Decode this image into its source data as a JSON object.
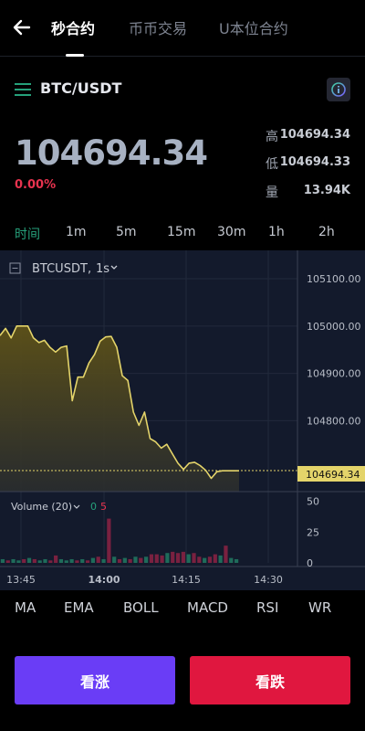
{
  "header": {
    "tabs": [
      {
        "label": "秒合约",
        "active": true
      },
      {
        "label": "币币交易",
        "active": false
      },
      {
        "label": "U本位合约",
        "active": false
      }
    ]
  },
  "pair": {
    "title": "BTC/USDT",
    "info_icon": "info-icon"
  },
  "ticker": {
    "price": "104694.34",
    "change": "0.00%",
    "high_label": "高",
    "high": "104694.34",
    "low_label": "低",
    "low": "104694.33",
    "volume_label": "量",
    "volume": "13.94K"
  },
  "intervals": [
    {
      "label": "时间",
      "active": true
    },
    {
      "label": "1m",
      "active": false
    },
    {
      "label": "5m",
      "active": false
    },
    {
      "label": "15m",
      "active": false
    },
    {
      "label": "30m",
      "active": false
    },
    {
      "label": "1h",
      "active": false
    },
    {
      "label": "2h",
      "active": false
    }
  ],
  "chart_data": {
    "type": "area",
    "symbol": "BTCUSDT",
    "interval": "1s",
    "y_ticks": [
      "105100.00",
      "105000.00",
      "104900.00",
      "104800.00"
    ],
    "ylim": [
      104650,
      105160
    ],
    "price_tag": "104694.34",
    "x_ticks": [
      "13:45",
      "14:00",
      "14:15",
      "14:30"
    ],
    "x_ticks_bold": [
      false,
      true,
      false,
      false
    ],
    "series": [
      {
        "x": [
          0,
          1,
          2,
          3,
          4,
          5,
          6,
          7,
          8,
          9,
          10,
          11,
          12,
          13,
          14,
          15,
          16,
          17,
          18,
          19,
          20,
          21,
          22,
          23,
          24,
          25,
          26,
          27,
          28,
          29,
          30,
          31,
          32,
          33,
          34,
          35,
          36,
          37,
          38,
          39,
          40,
          41,
          42,
          43
        ],
        "y": [
          104980,
          104995,
          104975,
          105000,
          105000,
          105000,
          104975,
          104965,
          104970,
          104955,
          104945,
          104955,
          104958,
          104842,
          104892,
          104892,
          104922,
          104940,
          104968,
          104977,
          104978,
          104955,
          104895,
          104885,
          104818,
          104790,
          104818,
          104762,
          104755,
          104742,
          104750,
          104730,
          104710,
          104697,
          104710,
          104712,
          104705,
          104695,
          104678,
          104692,
          104694,
          104694,
          104694,
          104694
        ]
      }
    ],
    "volume": {
      "label": "Volume (20)",
      "up_count": "0",
      "down_count": "5",
      "y_ticks": [
        "50",
        "25",
        "0"
      ],
      "ylim": [
        0,
        55
      ],
      "values": [
        3,
        2,
        3,
        2,
        3,
        4,
        3,
        2,
        3,
        2,
        6,
        3,
        2,
        3,
        2,
        3,
        2,
        4,
        5,
        3,
        36,
        5,
        3,
        4,
        3,
        5,
        4,
        5,
        7,
        7,
        6,
        8,
        9,
        8,
        9,
        7,
        8,
        5,
        4,
        5,
        7,
        6,
        14,
        4,
        3
      ],
      "colors": [
        "g",
        "r",
        "g",
        "g",
        "r",
        "g",
        "r",
        "g",
        "g",
        "r",
        "r",
        "g",
        "g",
        "g",
        "r",
        "g",
        "r",
        "g",
        "r",
        "g",
        "r",
        "g",
        "r",
        "g",
        "r",
        "g",
        "r",
        "g",
        "r",
        "r",
        "r",
        "g",
        "r",
        "r",
        "r",
        "g",
        "r",
        "r",
        "g",
        "r",
        "r",
        "g",
        "r",
        "g",
        "g"
      ]
    }
  },
  "indicators": [
    "MA",
    "EMA",
    "BOLL",
    "MACD",
    "RSI",
    "WR"
  ],
  "actions": {
    "buy_label": "看涨",
    "sell_label": "看跌"
  },
  "colors": {
    "up": "#26a17b",
    "down": "#e8334f",
    "line": "#e4d46a",
    "buy": "#6a3df6",
    "sell": "#e0173f"
  }
}
